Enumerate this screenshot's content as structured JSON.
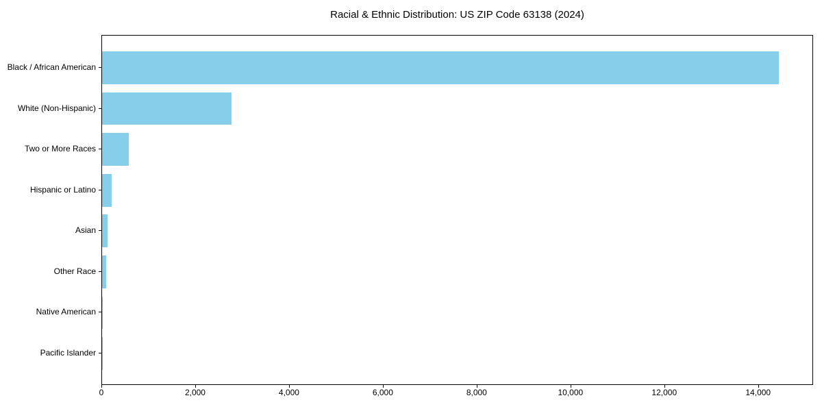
{
  "chart_data": {
    "type": "bar",
    "orientation": "horizontal",
    "title": "Racial & Ethnic Distribution: US ZIP Code 63138 (2024)",
    "categories": [
      "Black / African American",
      "White (Non-Hispanic)",
      "Two or More Races",
      "Hispanic or Latino",
      "Asian",
      "Other Race",
      "Native American",
      "Pacific Islander"
    ],
    "values": [
      14450,
      2760,
      575,
      210,
      115,
      85,
      15,
      8
    ],
    "xlabel": "",
    "ylabel": "",
    "xlim": [
      0,
      15172
    ],
    "x_ticks": [
      0,
      2000,
      4000,
      6000,
      8000,
      10000,
      12000,
      14000
    ],
    "x_tick_labels": [
      "0",
      "2,000",
      "4,000",
      "6,000",
      "8,000",
      "10,000",
      "12,000",
      "14,000"
    ],
    "grid": false,
    "legend": null,
    "colors": {
      "bar": "#87CEEB",
      "background": "#ffffff",
      "spine": "#000000",
      "text": "#000000"
    }
  }
}
